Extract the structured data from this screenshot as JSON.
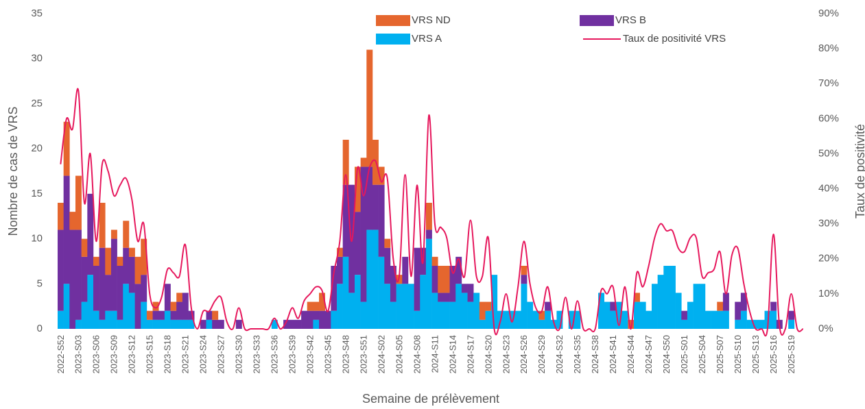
{
  "chart_data": {
    "type": "bar",
    "x_label": "Semaine de prélèvement",
    "y_label": "Nombre de cas de VRS",
    "y2_label": "Taux de positivité",
    "stacked": true,
    "categories": [
      "2022-S52",
      null,
      null,
      "2023-S03",
      null,
      null,
      "2023-S06",
      null,
      null,
      "2023-S09",
      null,
      null,
      "2023-S12",
      null,
      null,
      "2023-S15",
      null,
      null,
      "2023-S18",
      null,
      null,
      "2023-S21",
      null,
      null,
      "2023-S24",
      null,
      null,
      "2023-S27",
      null,
      null,
      "2023-S30",
      null,
      null,
      "2023-S33",
      null,
      null,
      "2023-S36",
      null,
      null,
      "2023-S39",
      null,
      null,
      "2023-S42",
      null,
      null,
      "2023-S45",
      null,
      null,
      "2023-S48",
      null,
      null,
      "2023-S51",
      null,
      null,
      "2024-S02",
      null,
      null,
      "2024-S05",
      null,
      null,
      "2024-S08",
      null,
      null,
      "2024-S11",
      null,
      null,
      "2024-S14",
      null,
      null,
      "2024-S17",
      null,
      null,
      "2024-S20",
      null,
      null,
      "2024-S23",
      null,
      null,
      "2024-S26",
      null,
      null,
      "2024-S29",
      null,
      null,
      "2024-S32",
      null,
      null,
      "2024-S35",
      null,
      null,
      "2024-S38",
      null,
      null,
      "2024-S41",
      null,
      null,
      "2024-S44",
      null,
      null,
      "2024-S47",
      null,
      null,
      "2024-S50",
      null,
      null,
      "2025-S01",
      null,
      null,
      "2025-S04",
      null,
      null,
      "2025-S07",
      null,
      null,
      "2025-S10",
      null,
      null,
      "2025-S13",
      null,
      null,
      "2025-S16",
      null,
      null,
      "2025-S19",
      null,
      null
    ],
    "series": [
      {
        "name": "VRS ND",
        "color": "#E5662E",
        "values": [
          3,
          6,
          2,
          6,
          2,
          0,
          1,
          5,
          3,
          1,
          1,
          3,
          1,
          3,
          4,
          1,
          1,
          0,
          0,
          1,
          1,
          0,
          0,
          0,
          0,
          0,
          1,
          0,
          0,
          0,
          0,
          0,
          0,
          0,
          0,
          0,
          0,
          0,
          0,
          0,
          0,
          0,
          1,
          1,
          2,
          0,
          0,
          1,
          5,
          0,
          5,
          1,
          13,
          5,
          2,
          1,
          0,
          1,
          0,
          0,
          0,
          0,
          3,
          1,
          3,
          3,
          0,
          0,
          0,
          0,
          0,
          2,
          1,
          0,
          0,
          0,
          0,
          0,
          1,
          0,
          0,
          1,
          0,
          0,
          0,
          0,
          0,
          0,
          0,
          0,
          0,
          0,
          0,
          0,
          0,
          0,
          1,
          1,
          0,
          0,
          0,
          0,
          0,
          0,
          0,
          0,
          0,
          0,
          0,
          0,
          0,
          1,
          0,
          0,
          0,
          0,
          0,
          0,
          0,
          0,
          0,
          0,
          0,
          0,
          0,
          0
        ]
      },
      {
        "name": "VRS B",
        "color": "#7030A0",
        "values": [
          9,
          12,
          11,
          10,
          5,
          9,
          5,
          8,
          4,
          8,
          6,
          4,
          4,
          5,
          3,
          0,
          1,
          1,
          3,
          1,
          2,
          3,
          1,
          0,
          1,
          1,
          1,
          1,
          0,
          0,
          1,
          0,
          0,
          0,
          0,
          0,
          0,
          0,
          1,
          1,
          1,
          2,
          2,
          1,
          2,
          2,
          5,
          3,
          8,
          12,
          7,
          15,
          7,
          5,
          8,
          4,
          4,
          0,
          3,
          0,
          7,
          3,
          1,
          3,
          1,
          1,
          4,
          3,
          1,
          2,
          0,
          0,
          0,
          0,
          0,
          0,
          0,
          0,
          1,
          0,
          0,
          0,
          1,
          0,
          0,
          0,
          0,
          0,
          0,
          0,
          0,
          0,
          0,
          1,
          0,
          0,
          0,
          0,
          0,
          0,
          0,
          0,
          0,
          0,
          0,
          1,
          0,
          0,
          0,
          0,
          0,
          0,
          2,
          0,
          2,
          2,
          0,
          0,
          0,
          0,
          1,
          1,
          0,
          1,
          0,
          0
        ]
      },
      {
        "name": "VRS A",
        "color": "#00B0F0",
        "values": [
          2,
          5,
          0,
          1,
          3,
          6,
          2,
          1,
          2,
          2,
          1,
          5,
          4,
          0,
          3,
          1,
          1,
          1,
          2,
          1,
          1,
          1,
          1,
          0,
          0,
          1,
          0,
          0,
          0,
          0,
          0,
          0,
          0,
          0,
          0,
          0,
          1,
          0,
          0,
          0,
          0,
          0,
          0,
          1,
          0,
          0,
          2,
          5,
          8,
          4,
          6,
          3,
          11,
          11,
          8,
          5,
          3,
          5,
          5,
          5,
          2,
          6,
          10,
          4,
          3,
          3,
          3,
          5,
          4,
          3,
          4,
          1,
          2,
          6,
          2,
          2,
          2,
          2,
          5,
          3,
          2,
          1,
          2,
          1,
          2,
          0,
          2,
          2,
          0,
          0,
          0,
          4,
          3,
          2,
          3,
          2,
          0,
          3,
          3,
          2,
          5,
          6,
          7,
          7,
          4,
          1,
          3,
          5,
          5,
          2,
          2,
          2,
          2,
          0,
          1,
          2,
          1,
          1,
          1,
          2,
          2,
          0,
          0,
          1,
          0,
          0
        ]
      },
      {
        "name": "Taux de positivité VRS",
        "color": "#E6175C",
        "type": "line",
        "axis": "y2",
        "values": [
          47,
          60,
          57,
          68,
          36,
          50,
          25,
          47,
          45,
          38,
          41,
          43,
          37,
          25,
          30,
          10,
          6,
          9,
          17,
          16,
          15,
          24,
          6,
          0,
          5,
          5,
          8,
          9,
          2,
          0,
          6,
          0,
          0,
          0,
          0,
          0,
          3,
          0,
          2,
          6,
          3,
          8,
          10,
          12,
          11,
          5,
          16,
          25,
          44,
          25,
          46,
          38,
          46,
          48,
          42,
          43,
          20,
          15,
          44,
          15,
          41,
          19,
          61,
          30,
          29,
          26,
          16,
          20,
          15,
          31,
          15,
          15,
          26,
          0,
          2,
          10,
          2,
          12,
          25,
          13,
          6,
          5,
          12,
          2,
          0,
          9,
          0,
          8,
          0,
          0,
          0,
          11,
          10,
          12,
          1,
          12,
          0,
          16,
          12,
          18,
          26,
          30,
          28,
          28,
          23,
          22,
          26,
          26,
          15,
          16,
          17,
          22,
          10,
          21,
          23,
          13,
          5,
          0,
          0,
          0,
          27,
          1,
          0,
          10,
          0,
          0
        ]
      }
    ],
    "ylim": [
      0,
      35
    ],
    "yticks": [
      0,
      5,
      10,
      15,
      20,
      25,
      30,
      35
    ],
    "y2lim": [
      0,
      90
    ],
    "y2ticks": [
      {
        "value": 0,
        "label": "0%"
      },
      {
        "value": 10,
        "label": "10%"
      },
      {
        "value": 20,
        "label": "20%"
      },
      {
        "value": 30,
        "label": "30%"
      },
      {
        "value": 40,
        "label": "40%"
      },
      {
        "value": 50,
        "label": "50%"
      },
      {
        "value": 60,
        "label": "60%"
      },
      {
        "value": 70,
        "label": "70%"
      },
      {
        "value": 80,
        "label": "80%"
      },
      {
        "value": 90,
        "label": "90%"
      }
    ],
    "grid": false
  }
}
